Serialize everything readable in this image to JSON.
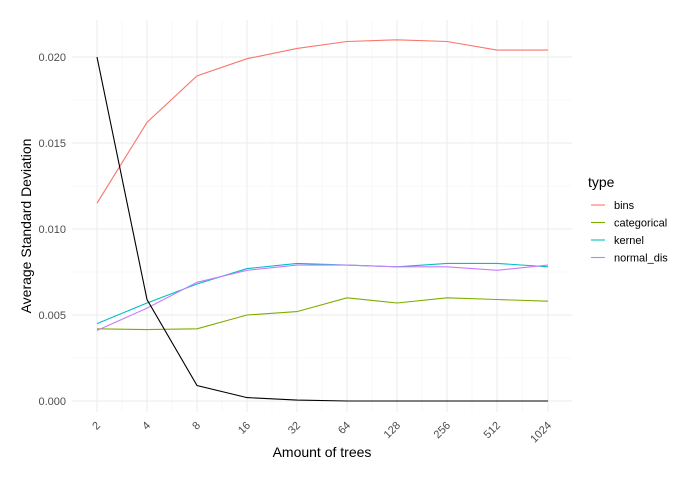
{
  "chart_data": {
    "type": "line",
    "title": "",
    "xlabel": "Amount of trees",
    "ylabel": "Average Standard Deviation",
    "x_scale": "log2",
    "x": [
      2,
      4,
      8,
      16,
      32,
      64,
      128,
      256,
      512,
      1024
    ],
    "x_tick_labels": [
      "2",
      "4",
      "8",
      "16",
      "32",
      "64",
      "128",
      "256",
      "512",
      "1024"
    ],
    "ylim": [
      -0.0005,
      0.0207
    ],
    "y_ticks": [
      0.0,
      0.005,
      0.01,
      0.015,
      0.02
    ],
    "y_tick_labels": [
      "0.000",
      "0.005",
      "0.010",
      "0.015",
      "0.020"
    ],
    "grid": true,
    "legend_title": "type",
    "legend_position": "right",
    "series": [
      {
        "name": "bins",
        "color": "#f8766d",
        "in_legend": true,
        "values": [
          0.0115,
          0.0162,
          0.0189,
          0.0199,
          0.0205,
          0.0209,
          0.021,
          0.0209,
          0.0204,
          0.0204
        ]
      },
      {
        "name": "categorical",
        "color": "#7cae00",
        "in_legend": true,
        "values": [
          0.0042,
          0.00415,
          0.0042,
          0.005,
          0.0052,
          0.006,
          0.0057,
          0.006,
          0.0059,
          0.0058
        ]
      },
      {
        "name": "kernel",
        "color": "#00bfc4",
        "in_legend": true,
        "values": [
          0.0045,
          0.0057,
          0.0068,
          0.0077,
          0.008,
          0.0079,
          0.0078,
          0.008,
          0.008,
          0.0078
        ]
      },
      {
        "name": "normal_dis",
        "color": "#c77cff",
        "in_legend": true,
        "values": [
          0.0041,
          0.0054,
          0.0069,
          0.0076,
          0.0079,
          0.0079,
          0.0078,
          0.0078,
          0.0076,
          0.0079
        ]
      },
      {
        "name": "",
        "color": "#000000",
        "in_legend": false,
        "values": [
          0.02,
          0.0059,
          0.0009,
          0.0002,
          5e-05,
          0.0,
          0.0,
          0.0,
          0.0,
          0.0
        ]
      }
    ]
  }
}
